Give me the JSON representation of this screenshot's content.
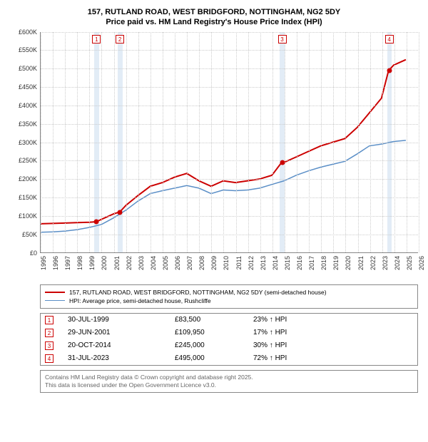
{
  "title_line1": "157, RUTLAND ROAD, WEST BRIDGFORD, NOTTINGHAM, NG2 5DY",
  "title_line2": "Price paid vs. HM Land Registry's House Price Index (HPI)",
  "chart": {
    "type": "line",
    "background_color": "#ffffff",
    "grid_color": "#cccccc",
    "xlim": [
      1995,
      2026
    ],
    "ylim": [
      0,
      600000
    ],
    "y_ticks": [
      0,
      50000,
      100000,
      150000,
      200000,
      250000,
      300000,
      350000,
      400000,
      450000,
      500000,
      550000,
      600000
    ],
    "y_tick_labels": [
      "£0",
      "£50K",
      "£100K",
      "£150K",
      "£200K",
      "£250K",
      "£300K",
      "£350K",
      "£400K",
      "£450K",
      "£500K",
      "£550K",
      "£600K"
    ],
    "x_ticks": [
      1995,
      1996,
      1997,
      1998,
      1999,
      2000,
      2001,
      2002,
      2003,
      2004,
      2005,
      2006,
      2007,
      2008,
      2009,
      2010,
      2011,
      2012,
      2013,
      2014,
      2015,
      2016,
      2017,
      2018,
      2019,
      2020,
      2021,
      2022,
      2023,
      2024,
      2025,
      2026
    ],
    "x_tick_labels": [
      "1995",
      "1996",
      "1997",
      "1998",
      "1999",
      "2000",
      "2001",
      "2002",
      "2003",
      "2004",
      "2005",
      "2006",
      "2007",
      "2008",
      "2009",
      "2010",
      "2011",
      "2012",
      "2013",
      "2014",
      "2015",
      "2016",
      "2017",
      "2018",
      "2019",
      "2020",
      "2021",
      "2022",
      "2023",
      "2024",
      "2025",
      "2026"
    ],
    "vbands": [
      {
        "from": 1999.4,
        "to": 1999.8,
        "color": "#d6e4f2"
      },
      {
        "from": 2001.3,
        "to": 2001.7,
        "color": "#d6e4f2"
      },
      {
        "from": 2014.6,
        "to": 2015.0,
        "color": "#d6e4f2"
      },
      {
        "from": 2023.4,
        "to": 2023.8,
        "color": "#d6e4f2"
      }
    ],
    "series": [
      {
        "name": "price_paid",
        "color": "#cc0000",
        "line_width": 2,
        "x": [
          1995,
          1996,
          1997,
          1998,
          1999,
          1999.58,
          2000,
          2001,
          2001.5,
          2002,
          2003,
          2004,
          2005,
          2006,
          2007,
          2008,
          2009,
          2010,
          2011,
          2012,
          2013,
          2014,
          2014.8,
          2015,
          2016,
          2017,
          2018,
          2019,
          2020,
          2021,
          2022,
          2023,
          2023.58,
          2024,
          2025
        ],
        "y": [
          78000,
          79000,
          80000,
          81000,
          82000,
          83500,
          90000,
          105000,
          109950,
          128000,
          155000,
          180000,
          190000,
          205000,
          215000,
          195000,
          180000,
          195000,
          190000,
          195000,
          200000,
          210000,
          245000,
          245000,
          260000,
          275000,
          290000,
          300000,
          310000,
          340000,
          380000,
          420000,
          495000,
          510000,
          525000
        ]
      },
      {
        "name": "hpi",
        "color": "#5b8fc7",
        "line_width": 1.5,
        "x": [
          1995,
          1996,
          1997,
          1998,
          1999,
          2000,
          2001,
          2002,
          2003,
          2004,
          2005,
          2006,
          2007,
          2008,
          2009,
          2010,
          2011,
          2012,
          2013,
          2014,
          2015,
          2016,
          2017,
          2018,
          2019,
          2020,
          2021,
          2022,
          2023,
          2024,
          2025
        ],
        "y": [
          55000,
          56000,
          58000,
          62000,
          68000,
          76000,
          94000,
          115000,
          140000,
          160000,
          168000,
          175000,
          182000,
          175000,
          160000,
          170000,
          168000,
          170000,
          175000,
          185000,
          195000,
          210000,
          222000,
          232000,
          240000,
          248000,
          268000,
          290000,
          295000,
          302000,
          305000
        ]
      }
    ],
    "sale_points": [
      {
        "x": 1999.58,
        "y": 83500,
        "color": "#cc0000"
      },
      {
        "x": 2001.5,
        "y": 109950,
        "color": "#cc0000"
      },
      {
        "x": 2014.8,
        "y": 245000,
        "color": "#cc0000"
      },
      {
        "x": 2023.58,
        "y": 495000,
        "color": "#cc0000"
      }
    ],
    "markers": [
      {
        "n": "1",
        "x": 1999.58
      },
      {
        "n": "2",
        "x": 2001.5
      },
      {
        "n": "3",
        "x": 2014.8
      },
      {
        "n": "4",
        "x": 2023.58
      }
    ]
  },
  "legend": [
    {
      "color": "#cc0000",
      "width": 2,
      "label": "157, RUTLAND ROAD, WEST BRIDGFORD, NOTTINGHAM, NG2 5DY (semi-detached house)"
    },
    {
      "color": "#5b8fc7",
      "width": 1.5,
      "label": "HPI: Average price, semi-detached house, Rushcliffe"
    }
  ],
  "sales": [
    {
      "n": "1",
      "date": "30-JUL-1999",
      "price": "£83,500",
      "hpi": "23% ↑ HPI"
    },
    {
      "n": "2",
      "date": "29-JUN-2001",
      "price": "£109,950",
      "hpi": "17% ↑ HPI"
    },
    {
      "n": "3",
      "date": "20-OCT-2014",
      "price": "£245,000",
      "hpi": "30% ↑ HPI"
    },
    {
      "n": "4",
      "date": "31-JUL-2023",
      "price": "£495,000",
      "hpi": "72% ↑ HPI"
    }
  ],
  "footer_line1": "Contains HM Land Registry data © Crown copyright and database right 2025.",
  "footer_line2": "This data is licensed under the Open Government Licence v3.0."
}
